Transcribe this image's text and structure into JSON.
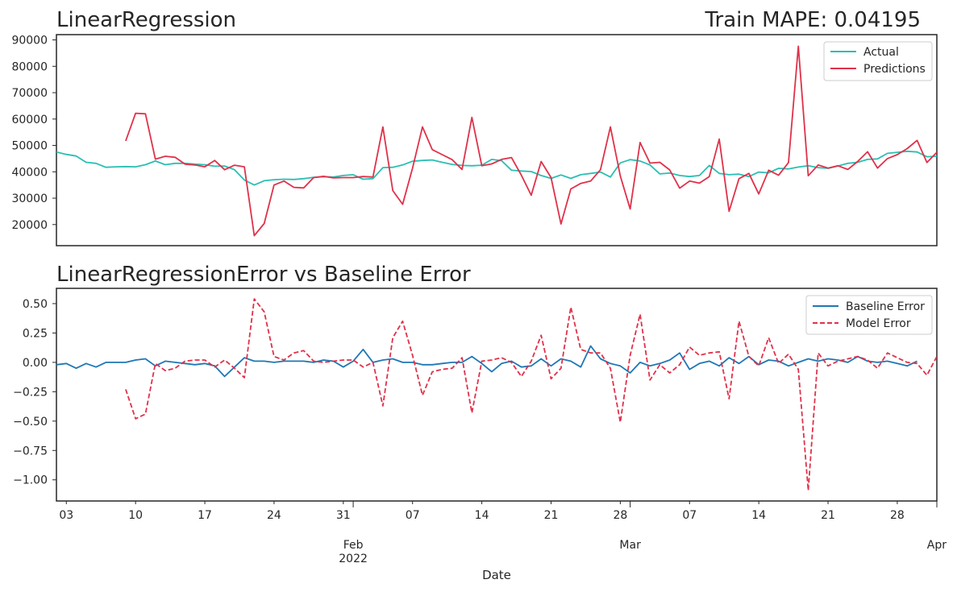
{
  "chart_data": [
    {
      "type": "line",
      "title": "LinearRegression",
      "title_right": "Train MAPE: 0.04195",
      "ylim": [
        12000,
        92000
      ],
      "yticks": [
        20000,
        30000,
        40000,
        50000,
        60000,
        70000,
        80000,
        90000
      ],
      "ytick_labels": [
        "20000",
        "30000",
        "40000",
        "50000",
        "60000",
        "70000",
        "80000",
        "90000"
      ],
      "legend": "top-right",
      "grid": false,
      "series": [
        {
          "name": "Actual",
          "color": "#2bbfb3",
          "style": "solid",
          "start_date": "2022-01-02",
          "values": [
            47500,
            46600,
            46000,
            43600,
            43200,
            41700,
            41900,
            42000,
            41900,
            42700,
            44100,
            42700,
            43200,
            43200,
            42900,
            42700,
            42100,
            42200,
            40800,
            36900,
            35000,
            36600,
            37000,
            37200,
            37100,
            37400,
            37900,
            38100,
            38000,
            38600,
            38900,
            37200,
            37400,
            41600,
            41700,
            42600,
            44000,
            44300,
            44500,
            43600,
            42800,
            42400,
            42300,
            42500,
            44700,
            44200,
            40600,
            40300,
            40100,
            38600,
            37500,
            38800,
            37500,
            38900,
            39400,
            39900,
            38000,
            43400,
            44600,
            44100,
            42600,
            39200,
            39500,
            38600,
            38200,
            38600,
            42400,
            39400,
            38900,
            39100,
            38200,
            39900,
            39600,
            41300,
            41100,
            41800,
            42300,
            41600,
            41300,
            42200,
            43200,
            43600,
            44700,
            44900,
            47000,
            47400,
            47800,
            47500,
            45700,
            45900
          ]
        },
        {
          "name": "Predictions",
          "color": "#e0314a",
          "style": "solid",
          "start_date": "2022-01-09",
          "values": [
            51700,
            62200,
            62000,
            44800,
            45900,
            45500,
            42900,
            42600,
            41900,
            44300,
            40800,
            42500,
            41900,
            15800,
            20400,
            35000,
            36500,
            34100,
            33900,
            37800,
            38300,
            37700,
            37800,
            37800,
            38200,
            38000,
            57000,
            32900,
            27700,
            41400,
            57000,
            48400,
            46500,
            44600,
            40900,
            60600,
            42300,
            43000,
            44700,
            45400,
            38700,
            31100,
            43900,
            37800,
            20200,
            33500,
            35600,
            36500,
            40800,
            57000,
            38400,
            25900,
            51100,
            43300,
            43600,
            40700,
            33800,
            36500,
            35700,
            38200,
            52400,
            25000,
            37400,
            39400,
            31600,
            40600,
            38700,
            43500,
            87600,
            38500,
            42600,
            41400,
            42300,
            40900,
            43900,
            47600,
            41400,
            45000,
            46500,
            48800,
            51900,
            43500,
            47400
          ]
        }
      ]
    },
    {
      "type": "line",
      "title": "LinearRegressionError vs Baseline Error",
      "xlabel": "Date",
      "ylim": [
        -1.18,
        0.63
      ],
      "yticks": [
        -1.0,
        -0.75,
        -0.5,
        -0.25,
        0.0,
        0.25,
        0.5
      ],
      "ytick_labels": [
        "−1.00",
        "−0.75",
        "−0.50",
        "−0.25",
        "0.00",
        "0.25",
        "0.50"
      ],
      "x_range": [
        "2022-01-02",
        "2022-04-01"
      ],
      "xticks": [
        {
          "date": "2022-01-03",
          "label": "03"
        },
        {
          "date": "2022-01-10",
          "label": "10"
        },
        {
          "date": "2022-01-17",
          "label": "17"
        },
        {
          "date": "2022-01-24",
          "label": "24"
        },
        {
          "date": "2022-01-31",
          "label": "31"
        },
        {
          "date": "2022-02-07",
          "label": "07"
        },
        {
          "date": "2022-02-14",
          "label": "14"
        },
        {
          "date": "2022-02-21",
          "label": "21"
        },
        {
          "date": "2022-02-28",
          "label": "28"
        },
        {
          "date": "2022-03-07",
          "label": "07"
        },
        {
          "date": "2022-03-14",
          "label": "14"
        },
        {
          "date": "2022-03-21",
          "label": "21"
        },
        {
          "date": "2022-03-28",
          "label": "28"
        }
      ],
      "major_ticks": [
        {
          "date": "2022-02-01",
          "label": "Feb",
          "sublabel": "2022"
        },
        {
          "date": "2022-03-01",
          "label": "Mar",
          "sublabel": ""
        },
        {
          "date": "2022-04-01",
          "label": "Apr",
          "sublabel": ""
        }
      ],
      "legend": "top-right",
      "grid": false,
      "series": [
        {
          "name": "Baseline Error",
          "color": "#1f77b4",
          "style": "solid",
          "start_date": "2022-01-02",
          "values": [
            -0.02,
            -0.01,
            -0.05,
            -0.01,
            -0.04,
            0.0,
            0.0,
            0.0,
            0.02,
            0.03,
            -0.03,
            0.01,
            0.0,
            -0.01,
            -0.02,
            -0.01,
            -0.03,
            -0.12,
            -0.04,
            0.04,
            0.01,
            0.01,
            0.0,
            0.01,
            0.01,
            0.01,
            0.0,
            0.02,
            0.01,
            -0.04,
            0.01,
            0.11,
            0.0,
            0.02,
            0.03,
            0.0,
            0.0,
            -0.02,
            -0.02,
            -0.01,
            0.0,
            0.0,
            0.05,
            -0.01,
            -0.08,
            -0.01,
            0.01,
            -0.04,
            -0.03,
            0.03,
            -0.03,
            0.03,
            0.01,
            -0.04,
            0.14,
            0.03,
            -0.01,
            -0.03,
            -0.09,
            0.0,
            -0.03,
            -0.01,
            0.02,
            0.08,
            -0.06,
            -0.01,
            0.01,
            -0.03,
            0.04,
            -0.01,
            0.05,
            -0.02,
            0.02,
            0.01,
            -0.03,
            0.0,
            0.03,
            0.01,
            0.03,
            0.02,
            0.0,
            0.05,
            0.01,
            0.0,
            0.01,
            -0.01,
            -0.03,
            0.01
          ]
        },
        {
          "name": "Model Error",
          "color": "#e0314a",
          "style": "dashed",
          "start_date": "2022-01-09",
          "values": [
            -0.23,
            -0.48,
            -0.44,
            -0.01,
            -0.07,
            -0.05,
            0.01,
            0.02,
            0.02,
            -0.04,
            0.02,
            -0.05,
            -0.13,
            0.54,
            0.43,
            0.05,
            0.02,
            0.08,
            0.1,
            0.01,
            0.0,
            0.01,
            0.02,
            0.02,
            -0.04,
            0.0,
            -0.37,
            0.21,
            0.35,
            0.06,
            -0.28,
            -0.08,
            -0.06,
            -0.05,
            0.04,
            -0.43,
            0.01,
            0.02,
            0.04,
            0.0,
            -0.12,
            0.01,
            0.23,
            -0.14,
            -0.05,
            0.47,
            0.11,
            0.08,
            0.08,
            -0.05,
            -0.51,
            0.06,
            0.41,
            -0.15,
            -0.02,
            -0.09,
            -0.02,
            0.13,
            0.06,
            0.08,
            0.09,
            -0.31,
            0.35,
            0.05,
            -0.03,
            0.21,
            -0.01,
            0.07,
            -0.06,
            -1.09,
            0.08,
            -0.03,
            0.01,
            0.03,
            0.05,
            0.02,
            -0.05,
            0.08,
            0.04,
            0.0,
            -0.01,
            -0.11,
            0.05,
            0.01
          ]
        }
      ]
    }
  ]
}
